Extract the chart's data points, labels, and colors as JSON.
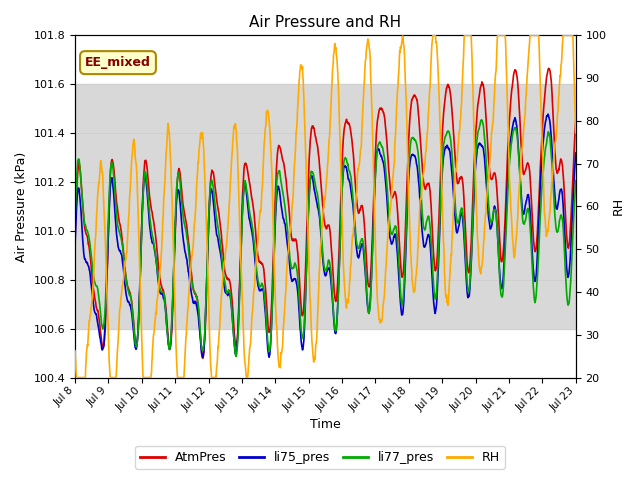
{
  "title": "Air Pressure and RH",
  "xlabel": "Time",
  "ylabel_left": "Air Pressure (kPa)",
  "ylabel_right": "RH",
  "xlim": [
    0,
    15
  ],
  "ylim_left": [
    100.4,
    101.8
  ],
  "ylim_right": [
    20,
    100
  ],
  "yticks_left": [
    100.4,
    100.6,
    100.8,
    101.0,
    101.2,
    101.4,
    101.6,
    101.8
  ],
  "yticks_right": [
    20,
    30,
    40,
    50,
    60,
    70,
    80,
    90,
    100
  ],
  "xtick_labels": [
    "Jul 8",
    "Jul 9",
    "Jul 10",
    "Jul 11",
    "Jul 12",
    "Jul 13",
    "Jul 14",
    "Jul 15",
    "Jul 16",
    "Jul 17",
    "Jul 18",
    "Jul 19",
    "Jul 20",
    "Jul 21",
    "Jul 22",
    "Jul 23"
  ],
  "shade_ylim": [
    100.6,
    101.6
  ],
  "shade_color": "#d8d8d8",
  "annotation_text": "EE_mixed",
  "colors": {
    "AtmPres": "#dd0000",
    "li75_pres": "#0000cc",
    "li77_pres": "#00aa00",
    "RH": "#ffaa00"
  },
  "line_widths": {
    "AtmPres": 1.2,
    "li75_pres": 1.2,
    "li77_pres": 1.2,
    "RH": 1.2
  },
  "bg_color": "#ffffff",
  "figsize": [
    6.4,
    4.8
  ],
  "dpi": 100
}
